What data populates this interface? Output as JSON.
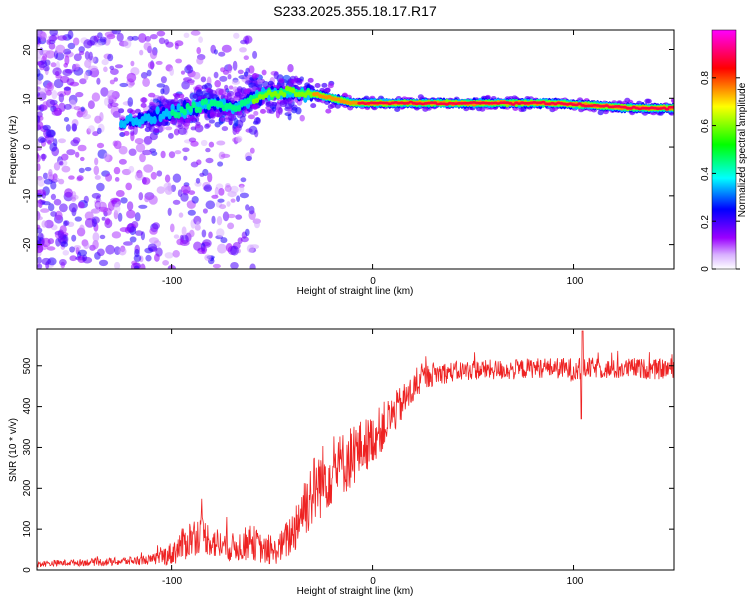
{
  "chart_data": [
    {
      "type": "heatmap",
      "title": "S233.2025.355.18.17.R17",
      "xlabel": "Height of straight line (km)",
      "ylabel": "Frequency (Hz)",
      "xlim": [
        -167,
        150
      ],
      "ylim": [
        -25,
        24
      ],
      "xticks": [
        -100,
        0,
        100
      ],
      "yticks": [
        -20,
        -10,
        0,
        10,
        20
      ],
      "colorbar": {
        "label": "Normalized spectral amplitude",
        "range": [
          0.0,
          1.0
        ],
        "ticks": [
          0.0,
          0.2,
          0.4,
          0.6,
          0.8
        ],
        "colormap": [
          "#ffffff",
          "#9b00ff",
          "#0000ff",
          "#00ffff",
          "#00ff00",
          "#ffff00",
          "#ff0000",
          "#ff00ff"
        ]
      },
      "ridge": {
        "x": [
          -125,
          -100,
          -90,
          -80,
          -70,
          -60,
          -50,
          -40,
          -30,
          -20,
          -10,
          0,
          10,
          30,
          50,
          70,
          90,
          110,
          130,
          150
        ],
        "frequency": [
          5,
          7,
          8,
          9,
          8,
          10,
          11,
          11,
          11,
          10,
          9,
          9,
          9,
          9,
          9,
          9,
          9,
          8.5,
          8,
          8
        ],
        "peak_amplitude": [
          0.35,
          0.4,
          0.45,
          0.45,
          0.5,
          0.55,
          0.6,
          0.65,
          0.7,
          0.75,
          0.8,
          0.9,
          0.85,
          0.9,
          0.9,
          0.92,
          0.92,
          0.9,
          0.95,
          0.95
        ]
      }
    },
    {
      "type": "line",
      "xlabel": "Height of straight line (km)",
      "ylabel": "SNR (10 * v/v)",
      "xlim": [
        -167,
        150
      ],
      "ylim": [
        0,
        590
      ],
      "xticks": [
        -100,
        0,
        100
      ],
      "yticks": [
        0,
        100,
        200,
        300,
        400,
        500
      ],
      "color": "#ee2222",
      "series": [
        {
          "name": "SNR",
          "x": [
            -167,
            -150,
            -130,
            -110,
            -100,
            -95,
            -90,
            -85,
            -80,
            -75,
            -70,
            -65,
            -60,
            -55,
            -50,
            -45,
            -40,
            -35,
            -30,
            -25,
            -20,
            -15,
            -10,
            -5,
            0,
            5,
            10,
            15,
            20,
            25,
            30,
            40,
            50,
            60,
            70,
            80,
            90,
            100,
            110,
            120,
            130,
            140,
            150
          ],
          "y": [
            15,
            18,
            20,
            25,
            40,
            60,
            80,
            90,
            70,
            60,
            55,
            60,
            70,
            50,
            40,
            60,
            90,
            150,
            190,
            220,
            240,
            260,
            280,
            300,
            320,
            350,
            380,
            410,
            440,
            470,
            480,
            485,
            490,
            490,
            490,
            495,
            495,
            490,
            495,
            490,
            495,
            490,
            495
          ],
          "noise": [
            8,
            8,
            10,
            12,
            30,
            40,
            50,
            45,
            40,
            40,
            35,
            40,
            45,
            35,
            30,
            40,
            60,
            80,
            90,
            90,
            80,
            80,
            80,
            70,
            60,
            60,
            50,
            45,
            40,
            30,
            30,
            25,
            25,
            25,
            25,
            25,
            25,
            30,
            25,
            25,
            25,
            25,
            25
          ]
        }
      ]
    }
  ]
}
